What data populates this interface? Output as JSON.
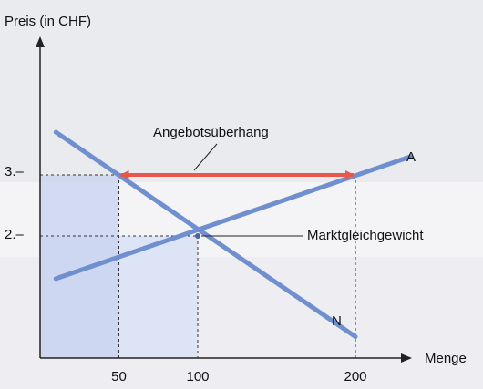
{
  "chart_data": {
    "type": "line",
    "title": "",
    "ylabel": "Preis (in CHF)",
    "xlabel": "Menge",
    "y_ticks": [
      {
        "value": 3,
        "label": "3.–"
      },
      {
        "value": 2,
        "label": "2.–"
      }
    ],
    "x_ticks": [
      {
        "value": 50,
        "label": "50"
      },
      {
        "value": 100,
        "label": "100"
      },
      {
        "value": 200,
        "label": "200"
      }
    ],
    "xlim": [
      0,
      240
    ],
    "ylim": [
      0,
      4.9
    ],
    "series": [
      {
        "name": "A",
        "points": [
          [
            10,
            1.3
          ],
          [
            235,
            3.3
          ]
        ]
      },
      {
        "name": "N",
        "points": [
          [
            10,
            3.7
          ],
          [
            200,
            0.35
          ]
        ]
      }
    ],
    "annotations": {
      "surplus": {
        "label": "Angebotsüberhang",
        "price": 3,
        "from_q": 50,
        "to_q": 200
      },
      "equilibrium": {
        "label": "Marktgleichgewicht",
        "price": 2,
        "quantity": 100
      }
    },
    "colors": {
      "curves": "#6f8fcf",
      "arrow": "#e8584a",
      "shade_dark": "#c8d3f0",
      "shade_light": "#dde4f6",
      "axis": "#222222"
    }
  }
}
